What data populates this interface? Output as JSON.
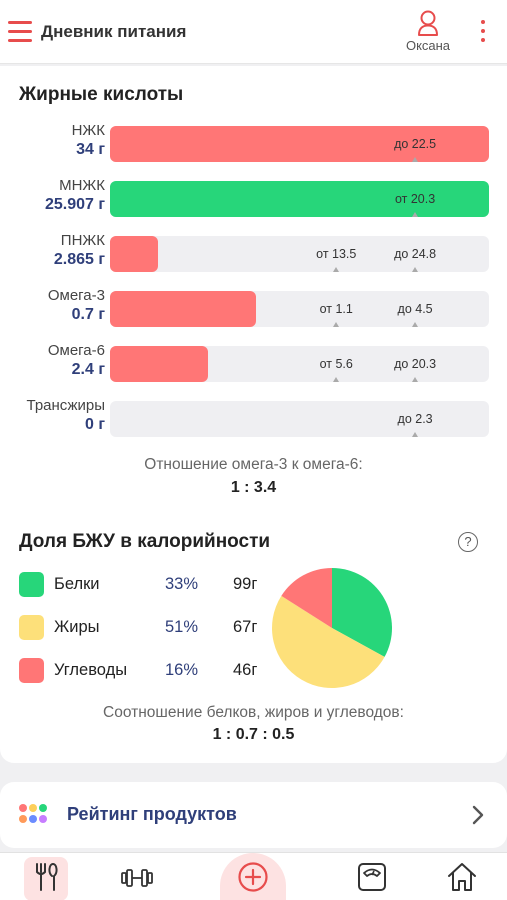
{
  "header": {
    "title": "Дневник питания",
    "user_name": "Оксана"
  },
  "fatty_acids": {
    "title": "Жирные кислоты",
    "rows": [
      {
        "name": "НЖК",
        "value": "34 г",
        "fill_fraction": 1.0,
        "fill_color": "#ff7676",
        "markers": [
          {
            "text": "до 22.5",
            "position_fraction": 0.805
          }
        ]
      },
      {
        "name": "МНЖК",
        "value": "25.907 г",
        "fill_fraction": 1.0,
        "fill_color": "#27d67a",
        "markers": [
          {
            "text": "от 20.3",
            "position_fraction": 0.805
          }
        ]
      },
      {
        "name": "ПНЖК",
        "value": "2.865 г",
        "fill_fraction": 0.127,
        "fill_color": "#ff7676",
        "markers": [
          {
            "text": "от 13.5",
            "position_fraction": 0.597
          },
          {
            "text": "до 24.8",
            "position_fraction": 0.805
          }
        ]
      },
      {
        "name": "Омега-3",
        "value": "0.7 г",
        "fill_fraction": 0.385,
        "fill_color": "#ff7676",
        "markers": [
          {
            "text": "от 1.1",
            "position_fraction": 0.597
          },
          {
            "text": "до 4.5",
            "position_fraction": 0.805
          }
        ]
      },
      {
        "name": "Омега-6",
        "value": "2.4 г",
        "fill_fraction": 0.258,
        "fill_color": "#ff7676",
        "markers": [
          {
            "text": "от 5.6",
            "position_fraction": 0.597
          },
          {
            "text": "до 20.3",
            "position_fraction": 0.805
          }
        ]
      },
      {
        "name": "Трансжиры",
        "value": "0 г",
        "fill_fraction": 0.0,
        "fill_color": "#ff7676",
        "markers": [
          {
            "text": "до 2.3",
            "position_fraction": 0.805
          }
        ]
      }
    ],
    "omega_ratio_caption": "Отношение омега-3 к омега-6:",
    "omega_ratio_value": "1 : 3.4"
  },
  "macros": {
    "title": "Доля БЖУ в калорийности",
    "help_symbol": "?",
    "items": [
      {
        "name": "Белки",
        "percent": "33%",
        "grams": "99г",
        "color": "#27d67a"
      },
      {
        "name": "Жиры",
        "percent": "51%",
        "grams": "67г",
        "color": "#fde07a"
      },
      {
        "name": "Углеводы",
        "percent": "16%",
        "grams": "46г",
        "color": "#ff7676"
      }
    ],
    "ratio_caption": "Соотношение белков, жиров и углеводов:",
    "ratio_value": "1 : 0.7 : 0.5"
  },
  "chart_data": {
    "type": "pie",
    "categories": [
      "Белки",
      "Жиры",
      "Углеводы"
    ],
    "values": [
      33,
      51,
      16
    ],
    "colors": [
      "#27d67a",
      "#fde07a",
      "#ff7676"
    ]
  },
  "product_rating": {
    "label": "Рейтинг продуктов"
  },
  "bottom_nav": {
    "items": [
      "diary-icon",
      "workout-icon",
      "add-icon",
      "weight-icon",
      "home-icon"
    ],
    "active": "diary-icon",
    "accent": "#e74c4c"
  }
}
